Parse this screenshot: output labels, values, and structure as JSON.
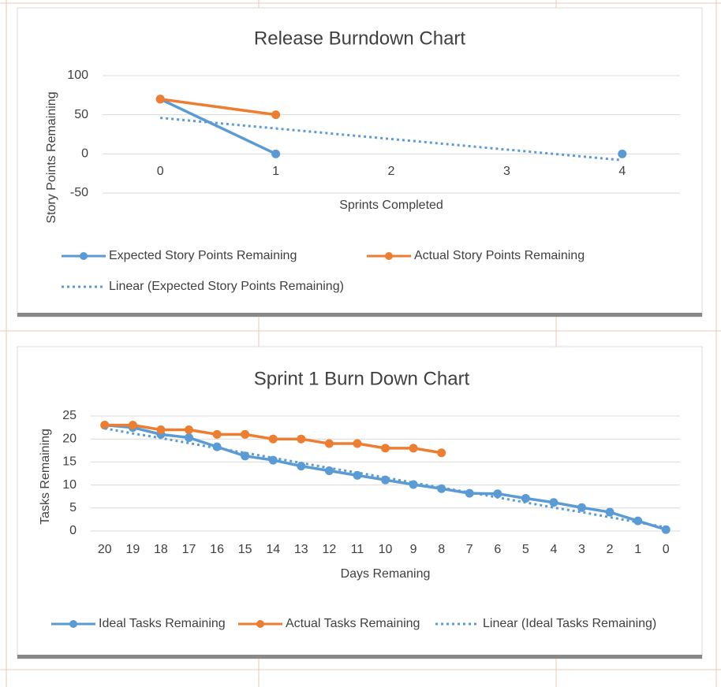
{
  "chart_data": [
    {
      "type": "line",
      "title": "Release Burndown Chart",
      "x_label": "Sprints Completed",
      "y_label": "Story Points Remaining",
      "categories": [
        "0",
        "1",
        "2",
        "3",
        "4"
      ],
      "series": [
        {
          "name": "Expected Story Points Remaining",
          "color": "#5b9bd5",
          "style": "solid",
          "values": [
            70,
            0,
            null,
            null,
            0
          ]
        },
        {
          "name": "Actual Story Points Remaining",
          "color": "#ed7d31",
          "style": "solid",
          "values": [
            70,
            50,
            null,
            null,
            null
          ]
        },
        {
          "name": "Linear  (Expected Story Points Remaining)",
          "color": "#5b9bd5",
          "style": "dotted",
          "values": [
            46,
            32.5,
            19,
            5.5,
            -8
          ]
        }
      ],
      "ylim": [
        -50,
        100
      ],
      "yticks": [
        -50,
        0,
        50,
        100
      ],
      "grid": true,
      "legend": "bottom"
    },
    {
      "type": "line",
      "title": "Sprint 1 Burn Down Chart",
      "x_label": "Days Remaning",
      "y_label": "Tasks Remaining",
      "categories": [
        "20",
        "19",
        "18",
        "17",
        "16",
        "15",
        "14",
        "13",
        "12",
        "11",
        "10",
        "9",
        "8",
        "7",
        "6",
        "5",
        "4",
        "3",
        "2",
        "1",
        "0"
      ],
      "series": [
        {
          "name": "Ideal Tasks Remaining",
          "color": "#5b9bd5",
          "style": "solid",
          "values": [
            23,
            22.5,
            21,
            20.3,
            18.3,
            16.3,
            15.4,
            14.1,
            13.1,
            12.1,
            11.1,
            10.1,
            9.2,
            8.2,
            8.1,
            7.1,
            6.2,
            5.1,
            4.1,
            2.2,
            0.3
          ]
        },
        {
          "name": "Actual Tasks Remaining",
          "color": "#ed7d31",
          "style": "solid",
          "values": [
            23,
            23,
            22,
            22,
            21,
            21,
            20,
            20,
            19,
            19,
            18,
            18,
            17,
            null,
            null,
            null,
            null,
            null,
            null,
            null,
            null
          ]
        },
        {
          "name": "Linear  (Ideal Tasks Remaining)",
          "color": "#5b9bd5",
          "style": "dotted",
          "values": [
            22.3,
            21.2,
            20.2,
            19.1,
            18.0,
            17.0,
            15.9,
            14.8,
            13.7,
            12.7,
            11.6,
            10.5,
            9.4,
            8.4,
            7.3,
            6.2,
            5.1,
            4.1,
            3.0,
            1.9,
            0.8
          ]
        }
      ],
      "ylim": [
        0,
        25
      ],
      "yticks": [
        0,
        5,
        10,
        15,
        20,
        25
      ],
      "grid": true,
      "legend": "bottom"
    }
  ]
}
